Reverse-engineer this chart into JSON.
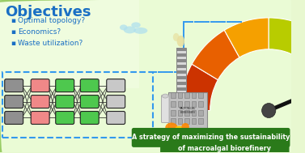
{
  "background_color": "#e8f8d0",
  "title": "Objectives",
  "title_color": "#1a6fc4",
  "bullet_points": [
    "Optimal topology?",
    "Economics?",
    "Waste utilization?"
  ],
  "bullet_color": "#1a6fc4",
  "banner_text1": "A strategy of maximizing the sustainability",
  "banner_text2": "of macroalgal biorefinery",
  "banner_color": "#2a7a1a",
  "banner_text_color": "#ffffff",
  "gauge_colors": [
    "#cc3300",
    "#e86000",
    "#f5a000",
    "#b8cc00",
    "#7ab820",
    "#2e8b1e"
  ],
  "node_colors": {
    "gray": "#909090",
    "pink": "#f08888",
    "green": "#4ec84e",
    "light_gray": "#c8c8c8"
  },
  "dashed_border_color": "#3399ee",
  "needle_color": "#111111",
  "cloud_color": "#b0e0ee",
  "chimney_light": "#d8d8d8",
  "chimney_dark": "#888888",
  "building_color": "#c0c0c0",
  "grass_color": "#5ab52a",
  "flame_color1": "#ff8800",
  "flame_color2": "#ffcc00",
  "smoke_color": "#e8e0a0"
}
